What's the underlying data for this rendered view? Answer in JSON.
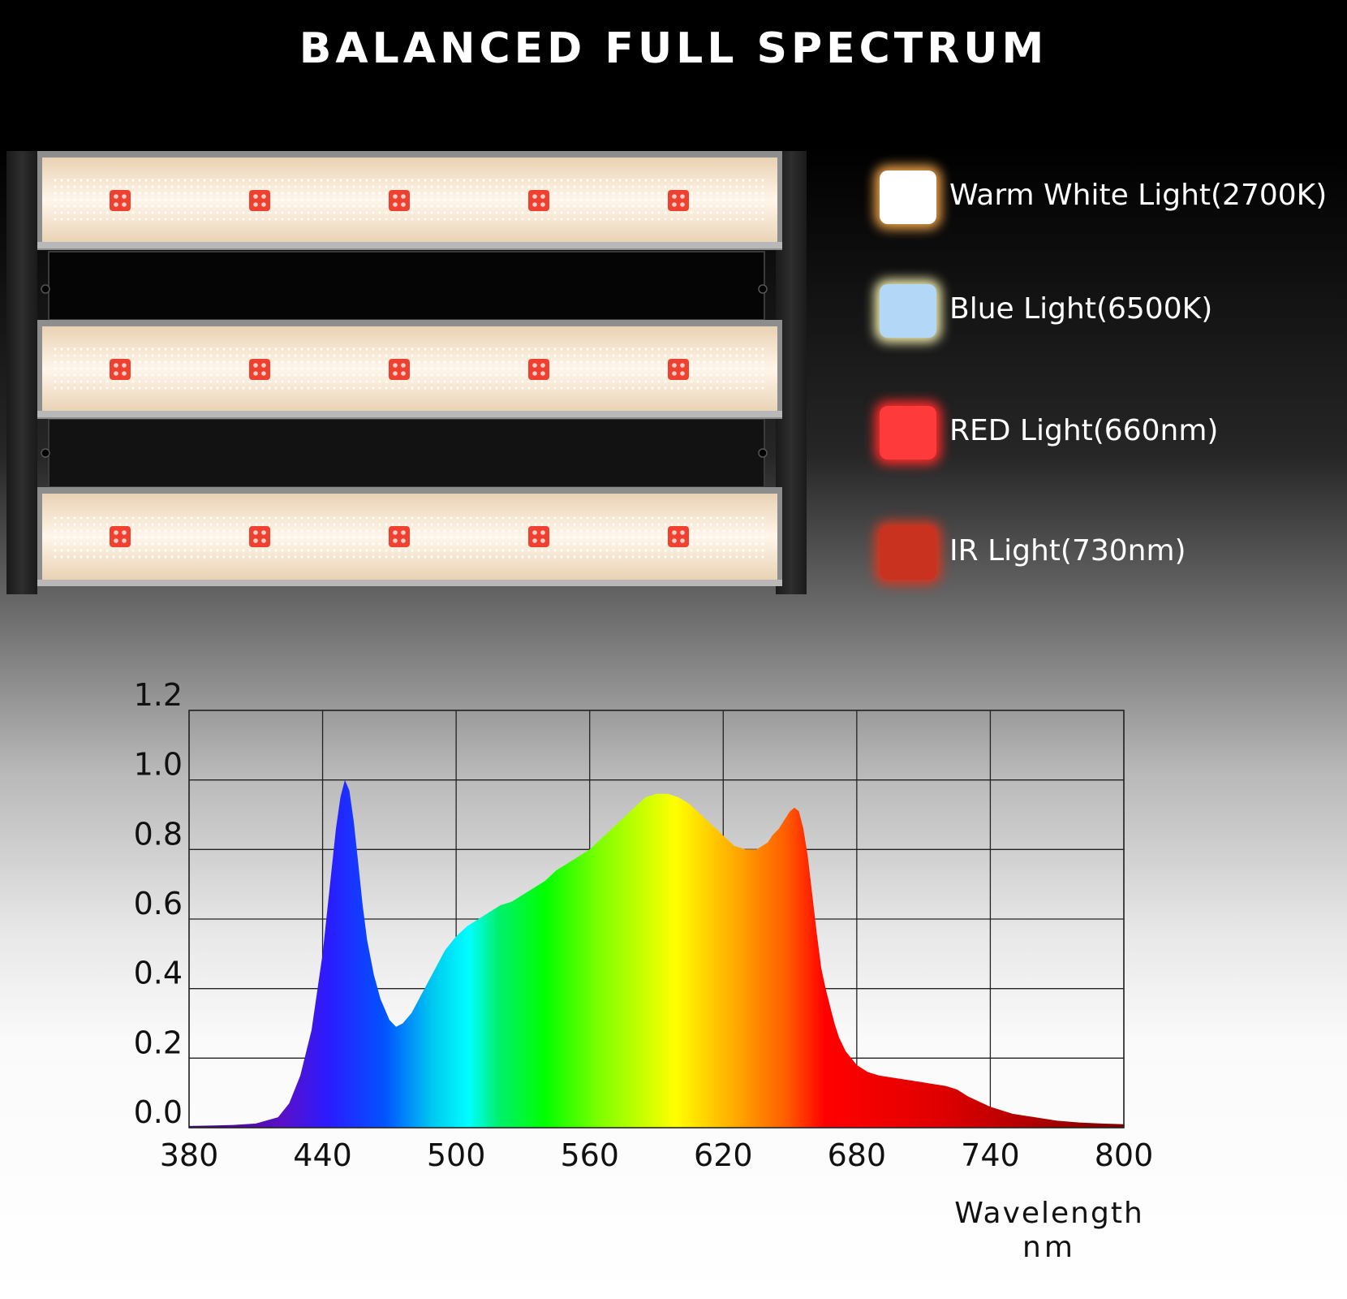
{
  "title": "BALANCED FULL SPECTRUM",
  "legend": [
    {
      "label": "Warm White Light(2700K)",
      "color": "#ffffff",
      "glow": "#f2a54a"
    },
    {
      "label": "Blue Light(6500K)",
      "color": "#b3d7f7",
      "glow": "#f3efb0"
    },
    {
      "label": "RED Light(660nm)",
      "color": "#ff3a3a",
      "glow": "#ff2b2b"
    },
    {
      "label": "IR Light(730nm)",
      "color": "#c9321f",
      "glow": "#d9371f"
    }
  ],
  "chart_data": {
    "type": "area",
    "xlabel": "Wavelength",
    "xunit": "nm",
    "ylabel": "",
    "xlim": [
      380,
      800
    ],
    "ylim": [
      0,
      1.2
    ],
    "xticks": [
      "380",
      "440",
      "500",
      "560",
      "620",
      "680",
      "740",
      "800"
    ],
    "yticks": [
      "0.0",
      "0.2",
      "0.4",
      "0.6",
      "0.8",
      "1.0",
      "1.2"
    ],
    "grid": true,
    "x": [
      380,
      390,
      400,
      410,
      420,
      425,
      430,
      435,
      440,
      443,
      446,
      448,
      450,
      452,
      454,
      456,
      458,
      460,
      463,
      466,
      470,
      473,
      476,
      480,
      485,
      490,
      495,
      500,
      505,
      510,
      515,
      520,
      525,
      530,
      535,
      540,
      545,
      550,
      555,
      560,
      565,
      570,
      575,
      580,
      585,
      590,
      595,
      600,
      605,
      610,
      615,
      620,
      625,
      630,
      635,
      640,
      642,
      645,
      648,
      650,
      652,
      654,
      656,
      658,
      660,
      662,
      664,
      666,
      668,
      670,
      672,
      675,
      680,
      685,
      690,
      700,
      710,
      720,
      725,
      730,
      740,
      750,
      760,
      770,
      780,
      790,
      800
    ],
    "values": [
      0.005,
      0.006,
      0.008,
      0.012,
      0.03,
      0.07,
      0.15,
      0.28,
      0.5,
      0.68,
      0.86,
      0.95,
      1.0,
      0.97,
      0.88,
      0.76,
      0.64,
      0.54,
      0.44,
      0.37,
      0.31,
      0.29,
      0.3,
      0.33,
      0.39,
      0.45,
      0.51,
      0.55,
      0.58,
      0.6,
      0.62,
      0.64,
      0.65,
      0.67,
      0.69,
      0.71,
      0.74,
      0.76,
      0.78,
      0.8,
      0.83,
      0.86,
      0.89,
      0.92,
      0.95,
      0.96,
      0.96,
      0.95,
      0.93,
      0.9,
      0.87,
      0.84,
      0.81,
      0.8,
      0.8,
      0.82,
      0.84,
      0.86,
      0.89,
      0.91,
      0.92,
      0.91,
      0.86,
      0.78,
      0.67,
      0.56,
      0.46,
      0.4,
      0.35,
      0.3,
      0.26,
      0.22,
      0.18,
      0.16,
      0.15,
      0.14,
      0.13,
      0.12,
      0.11,
      0.09,
      0.06,
      0.04,
      0.03,
      0.02,
      0.015,
      0.012,
      0.01
    ]
  }
}
